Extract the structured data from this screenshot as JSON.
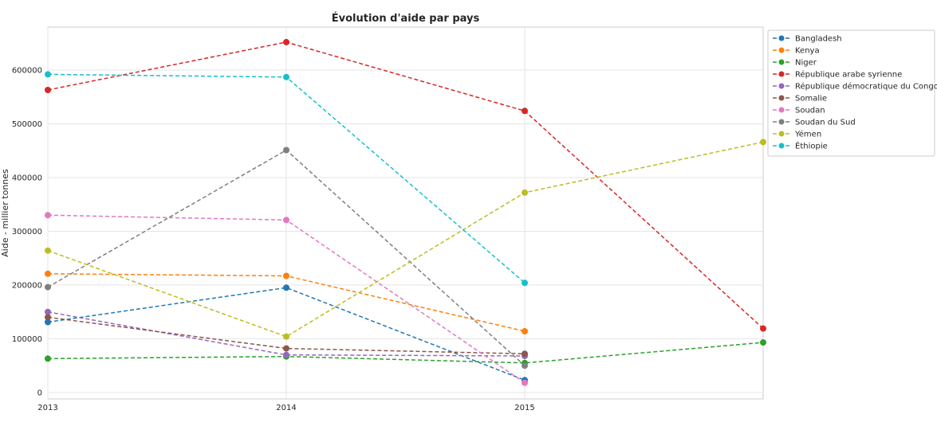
{
  "chart_data": {
    "type": "line",
    "title": "Évolution d'aide par pays",
    "xlabel": "",
    "ylabel": "Aide - millier tonnes",
    "x": [
      2013,
      2014,
      2015,
      2016
    ],
    "x_tick_labels": [
      "2013",
      "2014",
      "2015"
    ],
    "xlim": [
      2013,
      2016
    ],
    "ylim": [
      -12000,
      680000
    ],
    "y_ticks": [
      0,
      100000,
      200000,
      300000,
      400000,
      500000,
      600000
    ],
    "y_tick_labels": [
      "0",
      "100000",
      "200000",
      "300000",
      "400000",
      "500000",
      "600000"
    ],
    "grid": true,
    "line_style": "dashed",
    "marker": "circle",
    "legend_position": "outside-top-right",
    "series": [
      {
        "name": "Bangladesh",
        "color": "#1f77b4",
        "values": [
          131000,
          195000,
          23000,
          null
        ]
      },
      {
        "name": "Kenya",
        "color": "#ff7f0e",
        "values": [
          221000,
          217000,
          114000,
          null
        ]
      },
      {
        "name": "Niger",
        "color": "#2ca02c",
        "values": [
          63000,
          67000,
          55000,
          93000
        ]
      },
      {
        "name": "République arabe syrienne",
        "color": "#d62728",
        "values": [
          563000,
          652000,
          524000,
          119000
        ]
      },
      {
        "name": "République démocratique du Congo",
        "color": "#9467bd",
        "values": [
          150000,
          70000,
          68000,
          null
        ]
      },
      {
        "name": "Somalie",
        "color": "#8c564b",
        "values": [
          140000,
          82000,
          72000,
          null
        ]
      },
      {
        "name": "Soudan",
        "color": "#e377c2",
        "values": [
          330000,
          321000,
          18000,
          null
        ]
      },
      {
        "name": "Soudan du Sud",
        "color": "#7f7f7f",
        "values": [
          196000,
          451000,
          50000,
          null
        ]
      },
      {
        "name": "Yémen",
        "color": "#bcbd22",
        "values": [
          264000,
          104000,
          372000,
          466000
        ]
      },
      {
        "name": "Éthiopie",
        "color": "#17becf",
        "values": [
          592000,
          587000,
          204000,
          null
        ]
      }
    ]
  }
}
